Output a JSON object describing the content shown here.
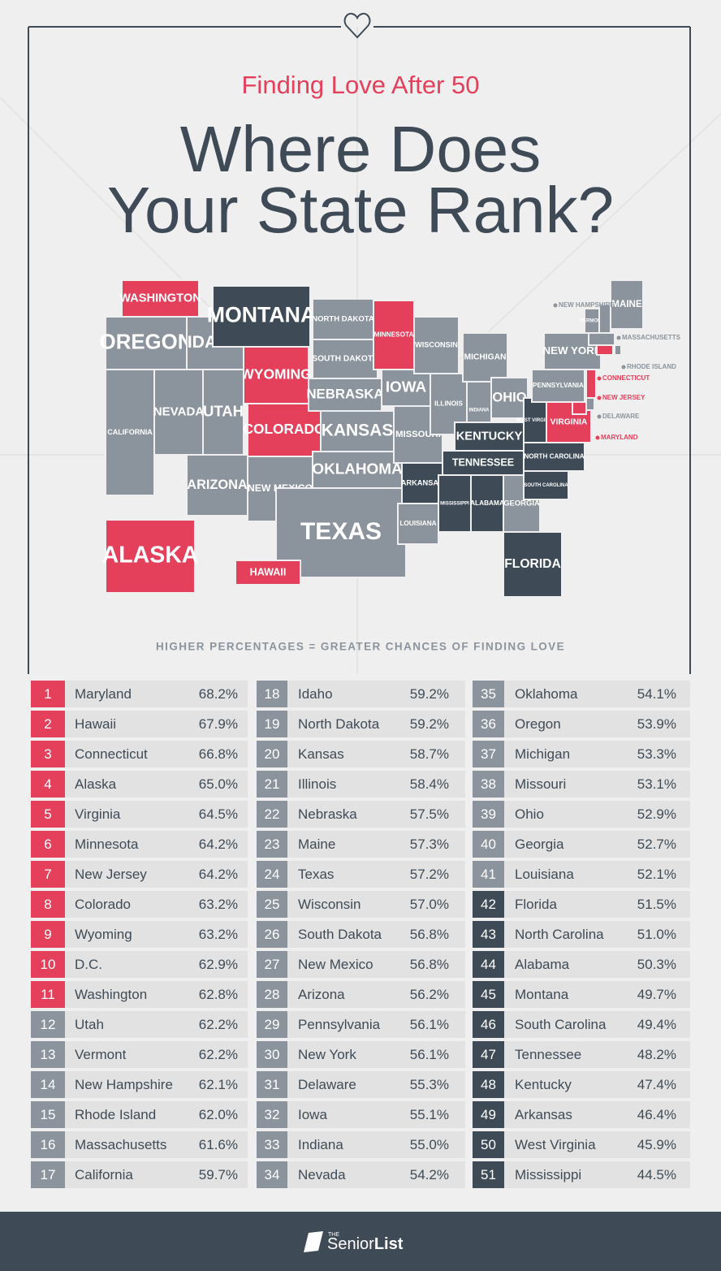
{
  "header": {
    "subtitle": "Finding Love After 50",
    "title_line1": "Where Does",
    "title_line2": "Your State Rank?"
  },
  "map": {
    "states": [
      {
        "label": "WASHINGTON",
        "color": "#e4405c"
      },
      {
        "label": "OREGON",
        "color": "#8b949c"
      },
      {
        "label": "CALIFORNIA",
        "color": "#8b949c"
      },
      {
        "label": "NEVADA",
        "color": "#8b949c"
      },
      {
        "label": "IDAHO",
        "color": "#8b949c"
      },
      {
        "label": "MONTANA",
        "color": "#3e4b56"
      },
      {
        "label": "WYOMING",
        "color": "#e4405c"
      },
      {
        "label": "UTAH",
        "color": "#8b949c"
      },
      {
        "label": "COLORADO",
        "color": "#e4405c"
      },
      {
        "label": "ARIZONA",
        "color": "#8b949c"
      },
      {
        "label": "NEW MEXICO",
        "color": "#8b949c"
      },
      {
        "label": "NORTH DAKOTA",
        "color": "#8b949c"
      },
      {
        "label": "SOUTH DAKOTA",
        "color": "#8b949c"
      },
      {
        "label": "NEBRASKA",
        "color": "#8b949c"
      },
      {
        "label": "KANSAS",
        "color": "#8b949c"
      },
      {
        "label": "OKLAHOMA",
        "color": "#8b949c"
      },
      {
        "label": "TEXAS",
        "color": "#8b949c"
      },
      {
        "label": "MINNESOTA",
        "color": "#e4405c"
      },
      {
        "label": "IOWA",
        "color": "#8b949c"
      },
      {
        "label": "MISSOURI",
        "color": "#8b949c"
      },
      {
        "label": "ARKANSAS",
        "color": "#3e4b56"
      },
      {
        "label": "LOUISIANA",
        "color": "#8b949c"
      },
      {
        "label": "WISCONSIN",
        "color": "#8b949c"
      },
      {
        "label": "ILLINOIS",
        "color": "#8b949c"
      },
      {
        "label": "MICHIGAN",
        "color": "#8b949c"
      },
      {
        "label": "INDIANA",
        "color": "#8b949c"
      },
      {
        "label": "OHIO",
        "color": "#8b949c"
      },
      {
        "label": "KENTUCKY",
        "color": "#3e4b56"
      },
      {
        "label": "TENNESSEE",
        "color": "#3e4b56"
      },
      {
        "label": "MISSISSIPPI",
        "color": "#3e4b56"
      },
      {
        "label": "ALABAMA",
        "color": "#3e4b56"
      },
      {
        "label": "GEORGIA",
        "color": "#8b949c"
      },
      {
        "label": "FLORIDA",
        "color": "#3e4b56"
      },
      {
        "label": "SOUTH CAROLINA",
        "color": "#3e4b56"
      },
      {
        "label": "NORTH CAROLINA",
        "color": "#3e4b56"
      },
      {
        "label": "WEST VIRGINIA",
        "color": "#3e4b56"
      },
      {
        "label": "VIRGINIA",
        "color": "#e4405c"
      },
      {
        "label": "PENNSYLVANIA",
        "color": "#8b949c"
      },
      {
        "label": "NEW YORK",
        "color": "#8b949c"
      },
      {
        "label": "VERMONT",
        "color": "#8b949c"
      },
      {
        "label": "MAINE",
        "color": "#8b949c"
      },
      {
        "label": "NEW HAMPSHIRE",
        "color": "#8b949c"
      },
      {
        "label": "MASSACHUSETTS",
        "color": "#8b949c"
      },
      {
        "label": "RHODE ISLAND",
        "color": "#8b949c"
      },
      {
        "label": "CONNECTICUT",
        "color": "#e4405c"
      },
      {
        "label": "NEW JERSEY",
        "color": "#e4405c"
      },
      {
        "label": "DELAWARE",
        "color": "#8b949c"
      },
      {
        "label": "MARYLAND",
        "color": "#e4405c"
      },
      {
        "label": "ALASKA",
        "color": "#e4405c"
      },
      {
        "label": "HAWAII",
        "color": "#e4405c"
      }
    ],
    "caption": "HIGHER PERCENTAGES = GREATER CHANCES OF FINDING LOVE"
  },
  "table": {
    "rows": [
      {
        "rank": 1,
        "state": "Maryland",
        "value": "68.2%",
        "color": "#e4405c"
      },
      {
        "rank": 2,
        "state": "Hawaii",
        "value": "67.9%",
        "color": "#e4405c"
      },
      {
        "rank": 3,
        "state": "Connecticut",
        "value": "66.8%",
        "color": "#e4405c"
      },
      {
        "rank": 4,
        "state": "Alaska",
        "value": "65.0%",
        "color": "#e4405c"
      },
      {
        "rank": 5,
        "state": "Virginia",
        "value": "64.5%",
        "color": "#e4405c"
      },
      {
        "rank": 6,
        "state": "Minnesota",
        "value": "64.2%",
        "color": "#e4405c"
      },
      {
        "rank": 7,
        "state": "New Jersey",
        "value": "64.2%",
        "color": "#e4405c"
      },
      {
        "rank": 8,
        "state": "Colorado",
        "value": "63.2%",
        "color": "#e4405c"
      },
      {
        "rank": 9,
        "state": "Wyoming",
        "value": "63.2%",
        "color": "#e4405c"
      },
      {
        "rank": 10,
        "state": "D.C.",
        "value": "62.9%",
        "color": "#e4405c"
      },
      {
        "rank": 11,
        "state": "Washington",
        "value": "62.8%",
        "color": "#e4405c"
      },
      {
        "rank": 12,
        "state": "Utah",
        "value": "62.2%",
        "color": "#8b949c"
      },
      {
        "rank": 13,
        "state": "Vermont",
        "value": "62.2%",
        "color": "#8b949c"
      },
      {
        "rank": 14,
        "state": "New Hampshire",
        "value": "62.1%",
        "color": "#8b949c"
      },
      {
        "rank": 15,
        "state": "Rhode Island",
        "value": "62.0%",
        "color": "#8b949c"
      },
      {
        "rank": 16,
        "state": "Massachusetts",
        "value": "61.6%",
        "color": "#8b949c"
      },
      {
        "rank": 17,
        "state": "California",
        "value": "59.7%",
        "color": "#8b949c"
      },
      {
        "rank": 18,
        "state": "Idaho",
        "value": "59.2%",
        "color": "#8b949c"
      },
      {
        "rank": 19,
        "state": "North Dakota",
        "value": "59.2%",
        "color": "#8b949c"
      },
      {
        "rank": 20,
        "state": "Kansas",
        "value": "58.7%",
        "color": "#8b949c"
      },
      {
        "rank": 21,
        "state": "Illinois",
        "value": "58.4%",
        "color": "#8b949c"
      },
      {
        "rank": 22,
        "state": "Nebraska",
        "value": "57.5%",
        "color": "#8b949c"
      },
      {
        "rank": 23,
        "state": "Maine",
        "value": "57.3%",
        "color": "#8b949c"
      },
      {
        "rank": 24,
        "state": "Texas",
        "value": "57.2%",
        "color": "#8b949c"
      },
      {
        "rank": 25,
        "state": "Wisconsin",
        "value": "57.0%",
        "color": "#8b949c"
      },
      {
        "rank": 26,
        "state": "South Dakota",
        "value": "56.8%",
        "color": "#8b949c"
      },
      {
        "rank": 27,
        "state": "New Mexico",
        "value": "56.8%",
        "color": "#8b949c"
      },
      {
        "rank": 28,
        "state": "Arizona",
        "value": "56.2%",
        "color": "#8b949c"
      },
      {
        "rank": 29,
        "state": "Pennsylvania",
        "value": "56.1%",
        "color": "#8b949c"
      },
      {
        "rank": 30,
        "state": "New York",
        "value": "56.1%",
        "color": "#8b949c"
      },
      {
        "rank": 31,
        "state": "Delaware",
        "value": "55.3%",
        "color": "#8b949c"
      },
      {
        "rank": 32,
        "state": "Iowa",
        "value": "55.1%",
        "color": "#8b949c"
      },
      {
        "rank": 33,
        "state": "Indiana",
        "value": "55.0%",
        "color": "#8b949c"
      },
      {
        "rank": 34,
        "state": "Nevada",
        "value": "54.2%",
        "color": "#8b949c"
      },
      {
        "rank": 35,
        "state": "Oklahoma",
        "value": "54.1%",
        "color": "#8b949c"
      },
      {
        "rank": 36,
        "state": "Oregon",
        "value": "53.9%",
        "color": "#8b949c"
      },
      {
        "rank": 37,
        "state": "Michigan",
        "value": "53.3%",
        "color": "#8b949c"
      },
      {
        "rank": 38,
        "state": "Missouri",
        "value": "53.1%",
        "color": "#8b949c"
      },
      {
        "rank": 39,
        "state": "Ohio",
        "value": "52.9%",
        "color": "#8b949c"
      },
      {
        "rank": 40,
        "state": "Georgia",
        "value": "52.7%",
        "color": "#8b949c"
      },
      {
        "rank": 41,
        "state": "Louisiana",
        "value": "52.1%",
        "color": "#8b949c"
      },
      {
        "rank": 42,
        "state": "Florida",
        "value": "51.5%",
        "color": "#3e4b56"
      },
      {
        "rank": 43,
        "state": "North Carolina",
        "value": "51.0%",
        "color": "#3e4b56"
      },
      {
        "rank": 44,
        "state": "Alabama",
        "value": "50.3%",
        "color": "#3e4b56"
      },
      {
        "rank": 45,
        "state": "Montana",
        "value": "49.7%",
        "color": "#3e4b56"
      },
      {
        "rank": 46,
        "state": "South Carolina",
        "value": "49.4%",
        "color": "#3e4b56"
      },
      {
        "rank": 47,
        "state": "Tennessee",
        "value": "48.2%",
        "color": "#3e4b56"
      },
      {
        "rank": 48,
        "state": "Kentucky",
        "value": "47.4%",
        "color": "#3e4b56"
      },
      {
        "rank": 49,
        "state": "Arkansas",
        "value": "46.4%",
        "color": "#3e4b56"
      },
      {
        "rank": 50,
        "state": "West Virginia",
        "value": "45.9%",
        "color": "#3e4b56"
      },
      {
        "rank": 51,
        "state": "Mississippi",
        "value": "44.5%",
        "color": "#3e4b56"
      }
    ]
  },
  "footer": {
    "logo_small": "THE",
    "logo_regular": "Senior",
    "logo_bold": "List"
  }
}
